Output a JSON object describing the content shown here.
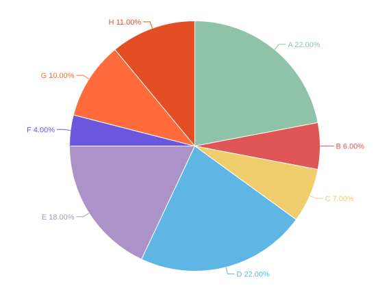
{
  "chart_data": {
    "type": "pie",
    "title": "",
    "start_angle_deg": 0,
    "direction": "clockwise",
    "slices": [
      {
        "label": "A",
        "value": 22.0,
        "display": "A 22.00%",
        "color": "#8fc3a8"
      },
      {
        "label": "B",
        "value": 6.0,
        "display": "B 6.00%",
        "color": "#e05556"
      },
      {
        "label": "C",
        "value": 7.0,
        "display": "C 7.00%",
        "color": "#f0cd6c"
      },
      {
        "label": "D",
        "value": 22.0,
        "display": "D 22.00%",
        "color": "#5fb6e5"
      },
      {
        "label": "E",
        "value": 18.0,
        "display": "E 18.00%",
        "color": "#ab93c9"
      },
      {
        "label": "F",
        "value": 4.0,
        "display": "F 4.00%",
        "color": "#6b56dd"
      },
      {
        "label": "G",
        "value": 10.0,
        "display": "G 10.00%",
        "color": "#ff6b3a"
      },
      {
        "label": "H",
        "value": 11.0,
        "display": "H 11.00%",
        "color": "#e44e24"
      }
    ]
  }
}
